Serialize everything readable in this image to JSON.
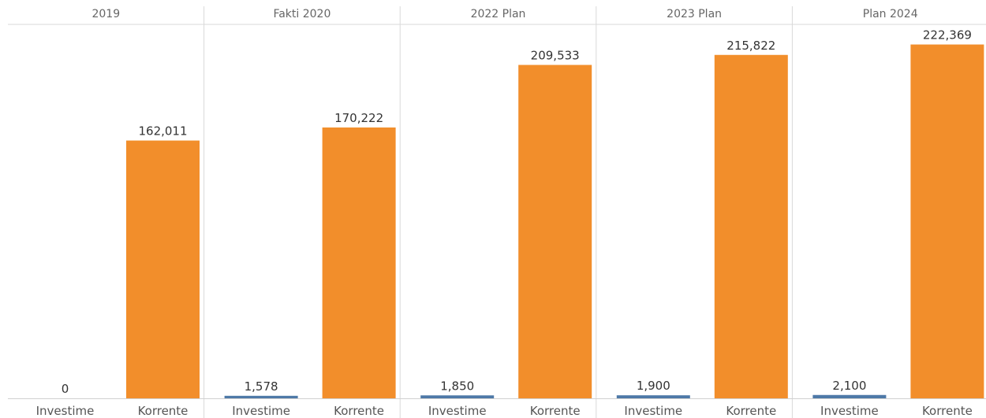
{
  "chart_data": {
    "type": "bar",
    "panels": [
      "2019",
      "Fakti 2020",
      "2022 Plan",
      "2023 Plan",
      "Plan 2024"
    ],
    "categories": [
      "Investime",
      "Korrente"
    ],
    "values": [
      [
        0,
        162011
      ],
      [
        1578,
        170222
      ],
      [
        1850,
        209533
      ],
      [
        1900,
        215822
      ],
      [
        2100,
        222369
      ]
    ],
    "value_labels": [
      [
        "0",
        "162,011"
      ],
      [
        "1,578",
        "170,222"
      ],
      [
        "1,850",
        "209,533"
      ],
      [
        "1,900",
        "215,822"
      ],
      [
        "2,100",
        "222,369"
      ]
    ],
    "colors": {
      "Investime": "#4e79a7",
      "Korrente": "#f28e2b"
    },
    "ylim": [
      0,
      235000
    ],
    "grid": false
  }
}
